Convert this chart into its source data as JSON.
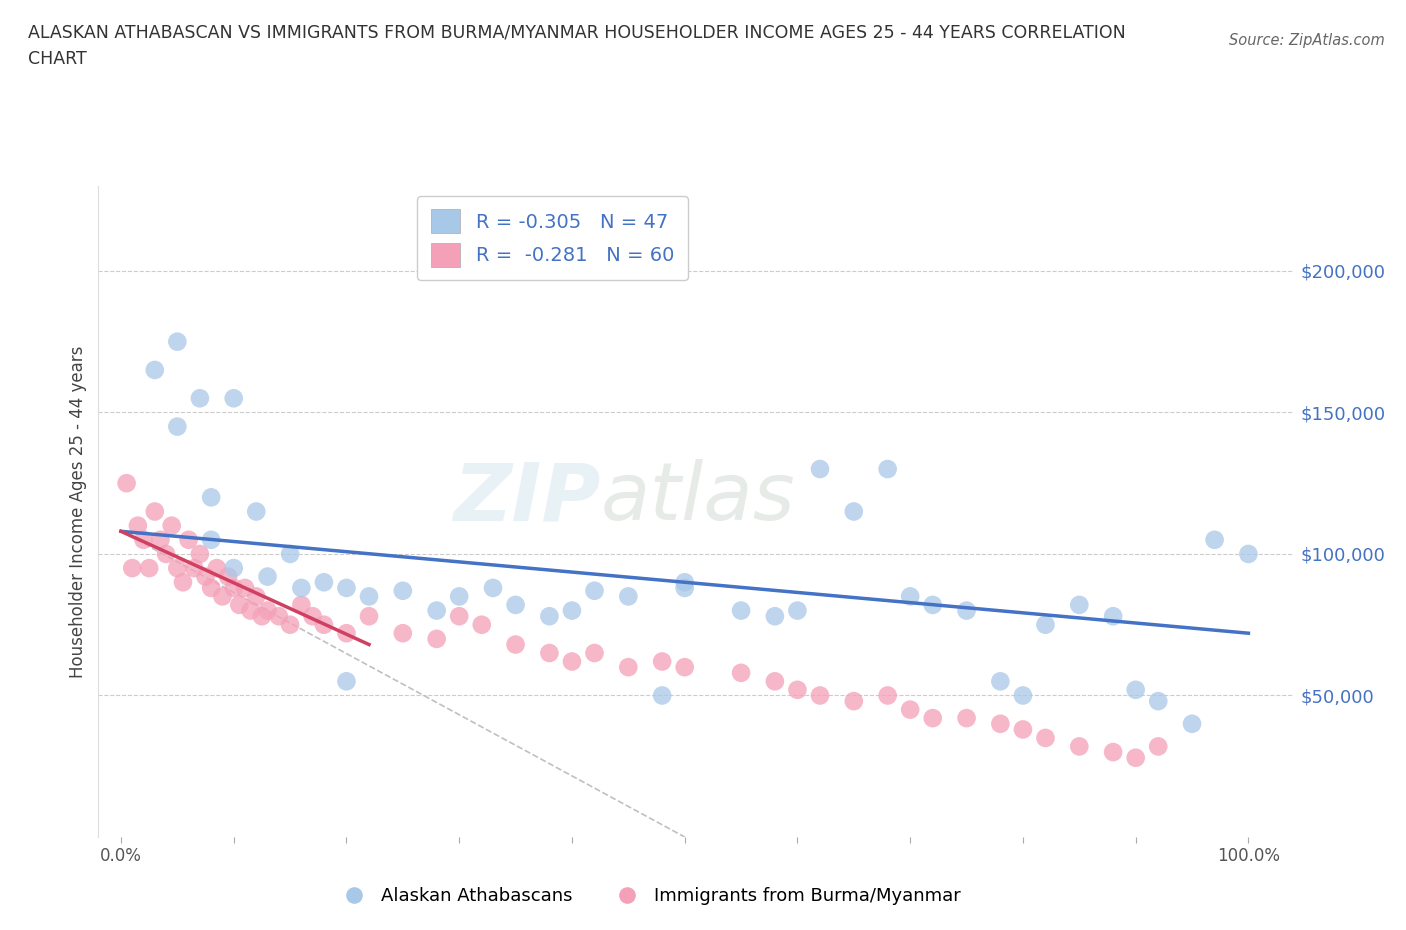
{
  "title": "ALASKAN ATHABASCAN VS IMMIGRANTS FROM BURMA/MYANMAR HOUSEHOLDER INCOME AGES 25 - 44 YEARS CORRELATION\nCHART",
  "source": "Source: ZipAtlas.com",
  "ylabel": "Householder Income Ages 25 - 44 years",
  "watermark_zip": "ZIP",
  "watermark_atlas": "atlas",
  "legend_r1_label": "R = -0.305   N = 47",
  "legend_r2_label": "R =  -0.281   N = 60",
  "color_blue": "#a8c8e8",
  "color_pink": "#f4a0b8",
  "line_blue": "#4472c4",
  "line_pink": "#d04060",
  "line_gray": "#c0c0c0",
  "yticks": [
    50000,
    100000,
    150000,
    200000
  ],
  "ytick_labels": [
    "$50,000",
    "$100,000",
    "$150,000",
    "$200,000"
  ],
  "xlim": [
    -2,
    104
  ],
  "ylim": [
    0,
    230000
  ],
  "blue_scatter_x": [
    3,
    5,
    8,
    8,
    10,
    12,
    15,
    18,
    20,
    22,
    25,
    28,
    30,
    33,
    35,
    38,
    40,
    42,
    45,
    48,
    50,
    50,
    55,
    58,
    60,
    62,
    65,
    68,
    70,
    72,
    75,
    78,
    80,
    82,
    85,
    88,
    90,
    92,
    95,
    97,
    100,
    5,
    7,
    10,
    13,
    16,
    20
  ],
  "blue_scatter_y": [
    165000,
    145000,
    105000,
    120000,
    95000,
    115000,
    100000,
    90000,
    88000,
    85000,
    87000,
    80000,
    85000,
    88000,
    82000,
    78000,
    80000,
    87000,
    85000,
    50000,
    88000,
    90000,
    80000,
    78000,
    80000,
    130000,
    115000,
    130000,
    85000,
    82000,
    80000,
    55000,
    50000,
    75000,
    82000,
    78000,
    52000,
    48000,
    40000,
    105000,
    100000,
    175000,
    155000,
    155000,
    92000,
    88000,
    55000
  ],
  "pink_scatter_x": [
    0.5,
    1,
    1.5,
    2,
    2.5,
    3,
    3.5,
    4,
    4.5,
    5,
    5.5,
    6,
    6.5,
    7,
    7.5,
    8,
    8.5,
    9,
    9.5,
    10,
    10.5,
    11,
    11.5,
    12,
    12.5,
    13,
    14,
    15,
    16,
    17,
    18,
    20,
    22,
    25,
    28,
    30,
    32,
    35,
    38,
    40,
    42,
    45,
    48,
    50,
    55,
    58,
    60,
    62,
    65,
    68,
    70,
    72,
    75,
    78,
    80,
    82,
    85,
    88,
    90,
    92
  ],
  "pink_scatter_y": [
    125000,
    95000,
    110000,
    105000,
    95000,
    115000,
    105000,
    100000,
    110000,
    95000,
    90000,
    105000,
    95000,
    100000,
    92000,
    88000,
    95000,
    85000,
    92000,
    88000,
    82000,
    88000,
    80000,
    85000,
    78000,
    80000,
    78000,
    75000,
    82000,
    78000,
    75000,
    72000,
    78000,
    72000,
    70000,
    78000,
    75000,
    68000,
    65000,
    62000,
    65000,
    60000,
    62000,
    60000,
    58000,
    55000,
    52000,
    50000,
    48000,
    50000,
    45000,
    42000,
    42000,
    40000,
    38000,
    35000,
    32000,
    30000,
    28000,
    32000
  ],
  "blue_line_x": [
    0,
    100
  ],
  "blue_line_y": [
    108000,
    72000
  ],
  "pink_line_x": [
    0,
    22
  ],
  "pink_line_y": [
    108000,
    68000
  ],
  "gray_line_x": [
    0,
    50
  ],
  "gray_line_y": [
    108000,
    0
  ]
}
